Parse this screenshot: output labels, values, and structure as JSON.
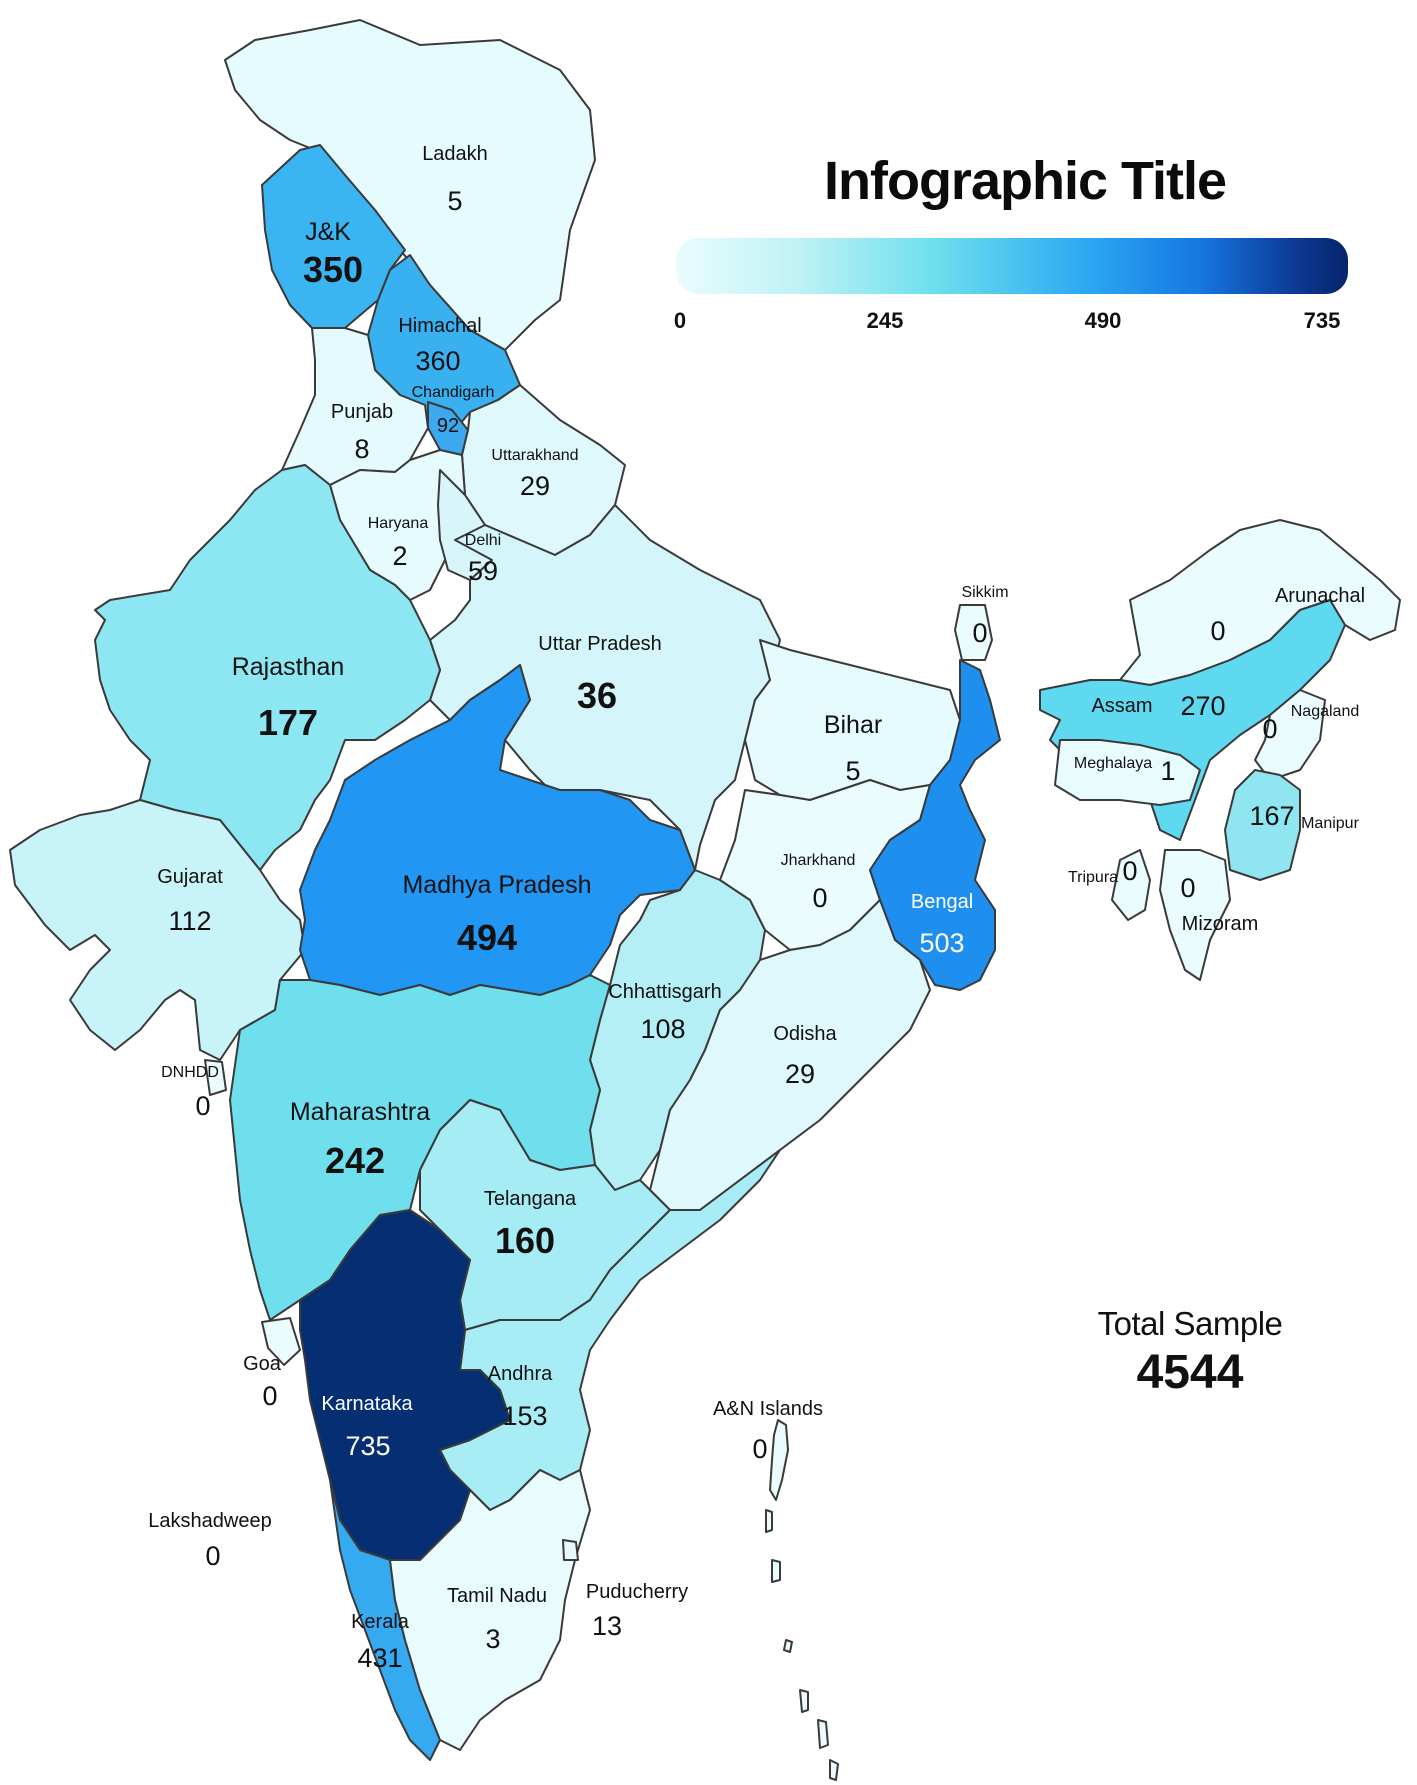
{
  "title": "Infographic Title",
  "legend": {
    "ticks": [
      "0",
      "245",
      "490",
      "735"
    ],
    "min_value": 0,
    "max_value": 735
  },
  "total": {
    "label": "Total Sample",
    "value": "4544"
  },
  "regions": {
    "ladakh": {
      "name": "Ladakh",
      "value": "5",
      "color": "#e6fbfd"
    },
    "jk": {
      "name": "J&K",
      "value": "350",
      "color": "#3bb4f2"
    },
    "himachal": {
      "name": "Himachal",
      "value": "360",
      "color": "#39b0f0"
    },
    "chandigarh": {
      "name": "Chandigarh",
      "value": "92",
      "color": "#3ca8f0"
    },
    "punjab": {
      "name": "Punjab",
      "value": "8",
      "color": "#e4fafc"
    },
    "uttarakhand": {
      "name": "Uttarakhand",
      "value": "29",
      "color": "#dff8fb"
    },
    "haryana": {
      "name": "Haryana",
      "value": "2",
      "color": "#e6fbfd"
    },
    "delhi": {
      "name": "Delhi",
      "value": "59",
      "color": "#d8f6fa"
    },
    "rajasthan": {
      "name": "Rajasthan",
      "value": "177",
      "color": "#8de7f2"
    },
    "uttar_pradesh": {
      "name": "Uttar Pradesh",
      "value": "36",
      "color": "#d4f5f9"
    },
    "bihar": {
      "name": "Bihar",
      "value": "5",
      "color": "#e6fbfd"
    },
    "sikkim": {
      "name": "Sikkim",
      "value": "0",
      "color": "#eafcfd"
    },
    "arunachal": {
      "name": "Arunachal",
      "value": "0",
      "color": "#eafcfd"
    },
    "assam": {
      "name": "Assam",
      "value": "270",
      "color": "#5ed9ef"
    },
    "nagaland": {
      "name": "Nagaland",
      "value": "0",
      "color": "#eafcfd"
    },
    "meghalaya": {
      "name": "Meghalaya",
      "value": "1",
      "color": "#e9fcfd"
    },
    "manipur": {
      "name": "Manipur",
      "value": "167",
      "color": "#8fe6f1"
    },
    "tripura": {
      "name": "Tripura",
      "value": "0",
      "color": "#eafcfd"
    },
    "mizoram": {
      "name": "Mizoram",
      "value": "0",
      "color": "#eafcfd"
    },
    "gujarat": {
      "name": "Gujarat",
      "value": "112",
      "color": "#c8f3f8"
    },
    "madhya_pradesh": {
      "name": "Madhya Pradesh",
      "value": "494",
      "color": "#2196f3"
    },
    "jharkhand": {
      "name": "Jharkhand",
      "value": "0",
      "color": "#eafcfd"
    },
    "bengal": {
      "name": "Bengal",
      "value": "503",
      "color": "#1f8fef"
    },
    "chhattisgarh": {
      "name": "Chhattisgarh",
      "value": "108",
      "color": "#b4eff6"
    },
    "odisha": {
      "name": "Odisha",
      "value": "29",
      "color": "#dff8fb"
    },
    "dnhdd": {
      "name": "DNHDD",
      "value": "0",
      "color": "#eafcfd"
    },
    "maharashtra": {
      "name": "Maharashtra",
      "value": "242",
      "color": "#6fdfee"
    },
    "telangana": {
      "name": "Telangana",
      "value": "160",
      "color": "#a5ecf5"
    },
    "goa": {
      "name": "Goa",
      "value": "0",
      "color": "#eafcfd"
    },
    "karnataka": {
      "name": "Karnataka",
      "value": "735",
      "color": "#062f73"
    },
    "andhra": {
      "name": "Andhra",
      "value": "153",
      "color": "#a8edf5"
    },
    "an_islands": {
      "name": "A&N Islands",
      "value": "0",
      "color": "#eafcfd"
    },
    "lakshadweep": {
      "name": "Lakshadweep",
      "value": "0",
      "color": "#eafcfd"
    },
    "kerala": {
      "name": "Kerala",
      "value": "431",
      "color": "#35aaf0"
    },
    "tamil_nadu": {
      "name": "Tamil Nadu",
      "value": "3",
      "color": "#e8fbfd"
    },
    "puducherry": {
      "name": "Puducherry",
      "value": "13",
      "color": "#e4fafc"
    }
  }
}
